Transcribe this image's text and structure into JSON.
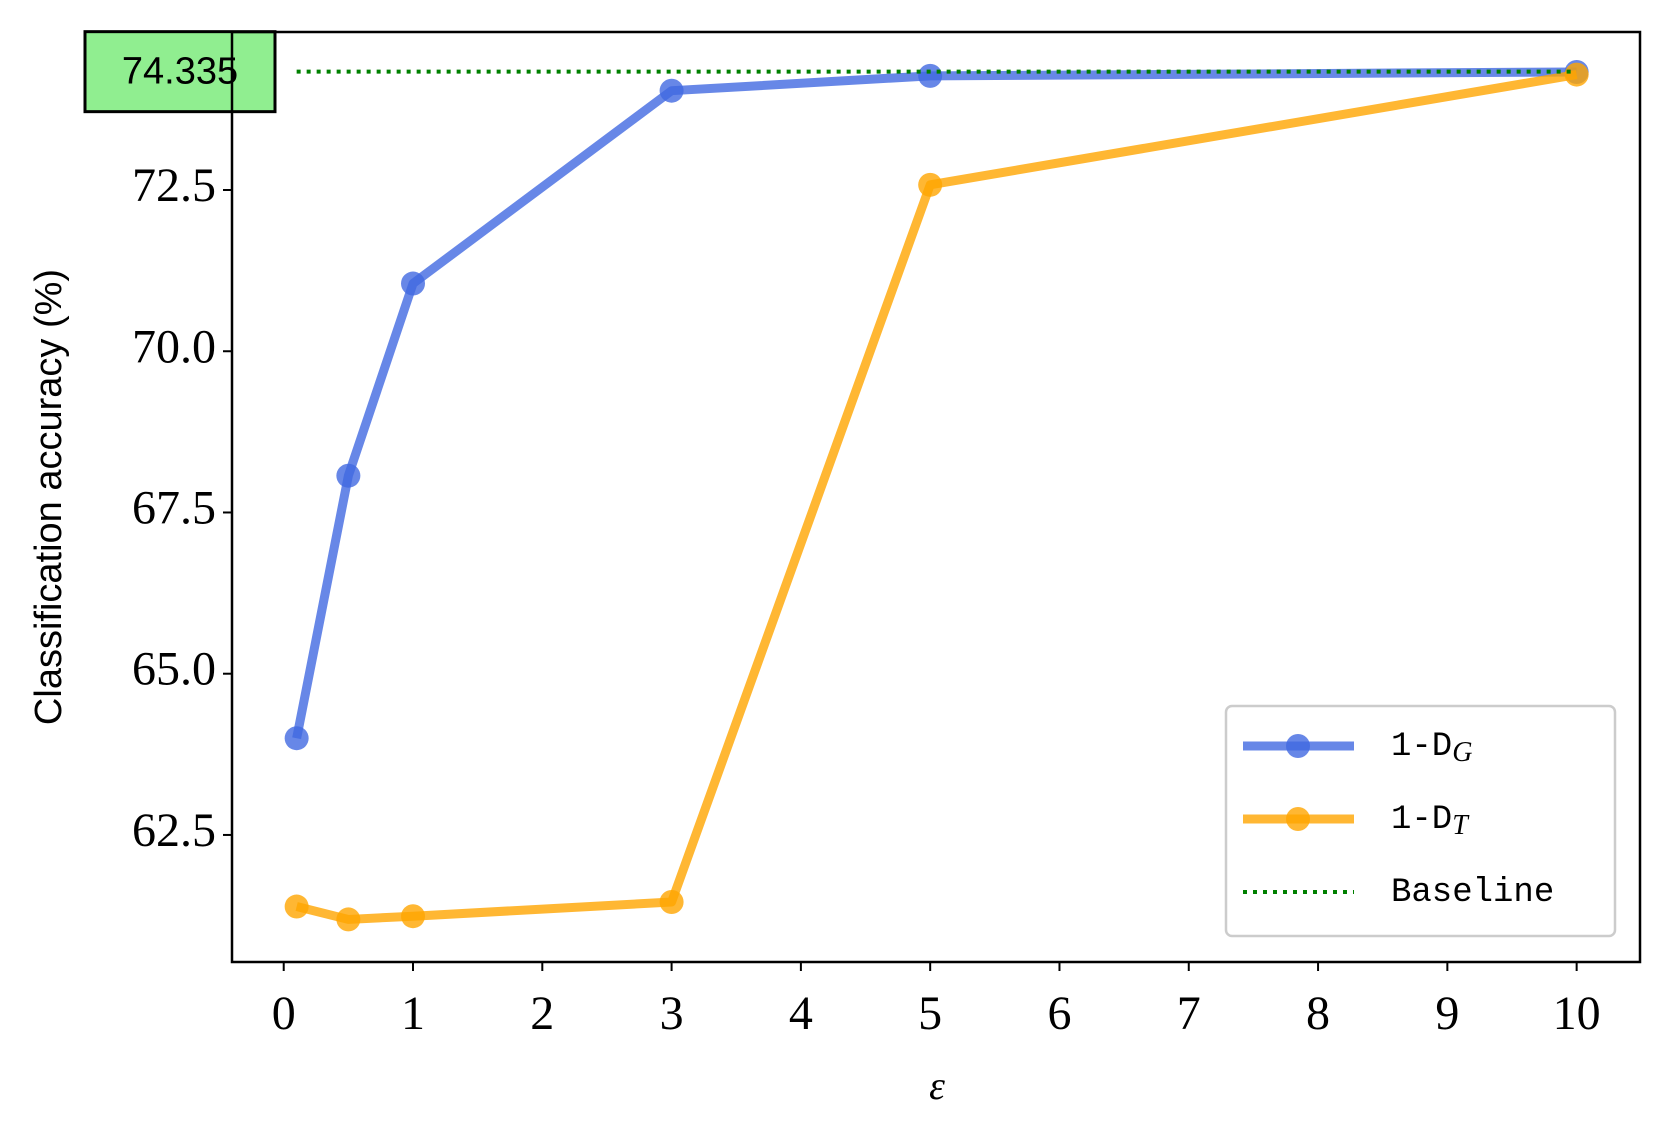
{
  "chart_data": {
    "type": "line",
    "xlabel": "ε",
    "ylabel": "Classification accuracy (%)",
    "x": [
      0.1,
      0.5,
      1,
      3,
      5,
      10
    ],
    "series": [
      {
        "name": "1-DG",
        "color": "#4169e1",
        "values": [
          64.0,
          68.07,
          71.05,
          74.04,
          74.27,
          74.33
        ]
      },
      {
        "name": "1-DT",
        "color": "#ffa500",
        "values": [
          61.39,
          61.19,
          61.24,
          61.46,
          72.58,
          74.29
        ]
      }
    ],
    "baseline": {
      "name": "Baseline",
      "value": 74.335,
      "color": "#008000",
      "label_color": "#90ee90"
    },
    "xlim": [
      -0.4,
      10.49
    ],
    "ylim": [
      60.53,
      74.95
    ],
    "xticks": [
      0,
      1,
      2,
      3,
      4,
      5,
      6,
      7,
      8,
      9,
      10
    ],
    "yticks": [
      62.5,
      {
        "value": 65,
        "label": "65.0"
      },
      67.5,
      {
        "value": 70,
        "label": "70.0"
      },
      72.5
    ],
    "legend": "lower right",
    "grid": false
  }
}
